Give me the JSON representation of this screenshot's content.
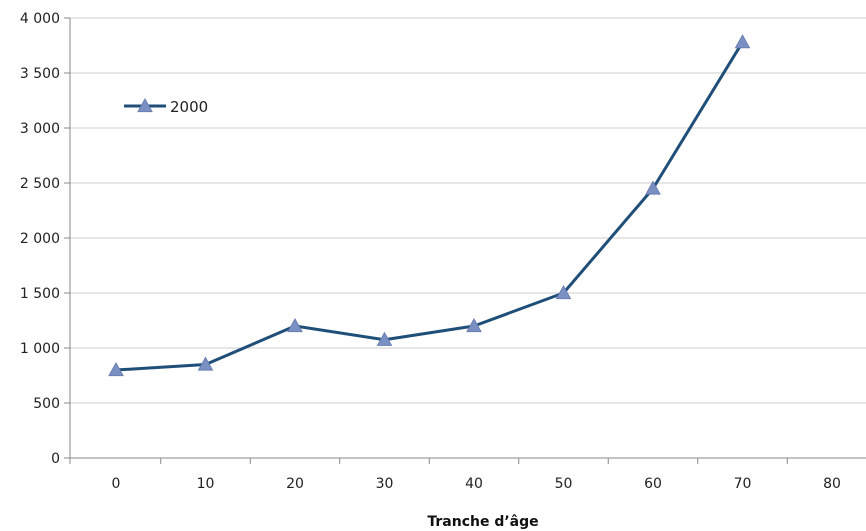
{
  "chart_data": {
    "type": "line",
    "title": "",
    "xlabel": "Tranche d’âge",
    "ylabel": "",
    "x_ticks": [
      "0",
      "10",
      "20",
      "30",
      "40",
      "50",
      "60",
      "70",
      "80"
    ],
    "y_ticks": [
      "0",
      "500",
      "1 000",
      "1 500",
      "2 000",
      "2 500",
      "3 000",
      "3 500",
      "4 000"
    ],
    "xlim": [
      0,
      80
    ],
    "ylim": [
      0,
      4000
    ],
    "grid": "horizontal",
    "legend_position": "top-left",
    "series": [
      {
        "name": "2000",
        "color": "#1f4e79",
        "marker_color": "#7a8fc2",
        "marker": "triangle",
        "x": [
          0,
          10,
          20,
          30,
          40,
          50,
          60,
          70
        ],
        "values": [
          800,
          850,
          1200,
          1075,
          1200,
          1500,
          2450,
          3780
        ]
      }
    ]
  }
}
